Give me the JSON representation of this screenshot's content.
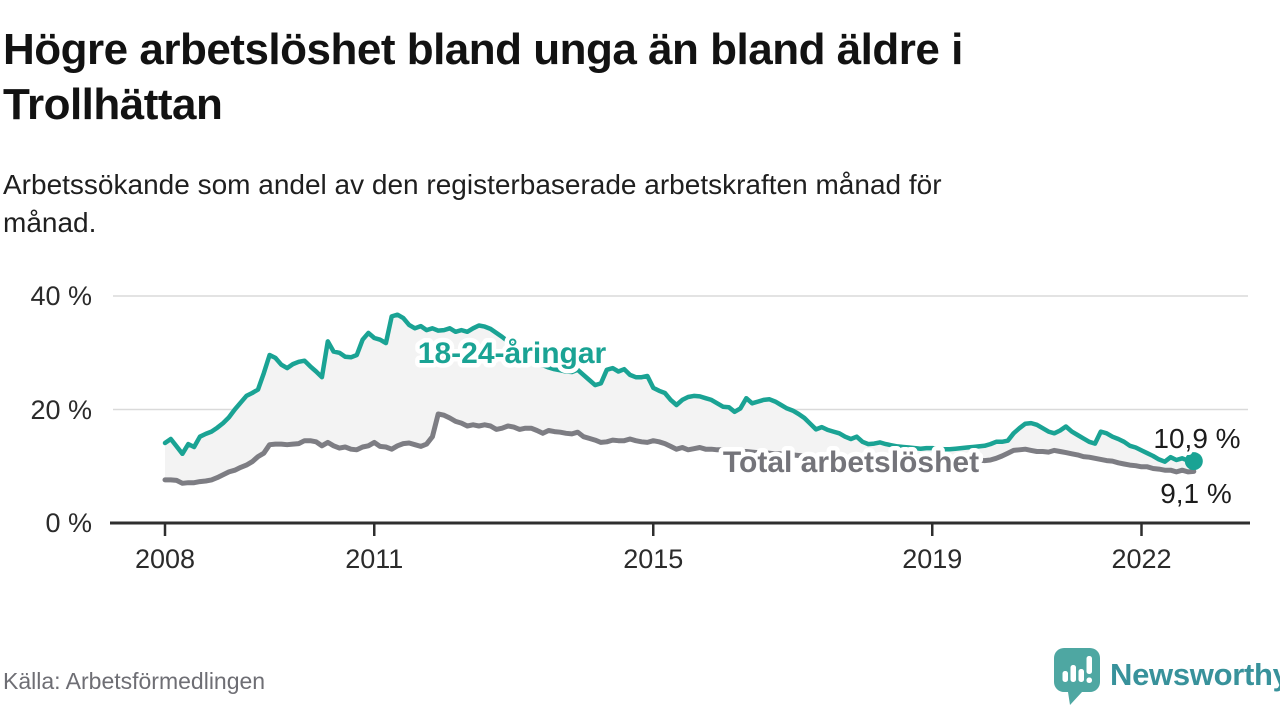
{
  "header": {
    "title_line1": "Högre arbetslöshet bland unga än bland äldre i",
    "title_line2": "Trollhättan",
    "subtitle_line1": "Arbetssökande som andel av den registerbaserade arbetskraften månad för",
    "subtitle_line2": "månad."
  },
  "footer": {
    "source": "Källa: Arbetsförmedlingen",
    "logo_text": "Newsworthy"
  },
  "colors": {
    "young_line": "#1aa394",
    "total_line": "#7d7d83",
    "total_label": "#74747a",
    "area_fill": "#f3f3f3",
    "gridline": "#dadada",
    "axis": "#2e2e2e",
    "logo_bubble": "#4ea7a2",
    "logo_text": "#38929b"
  },
  "chart_data": {
    "type": "line",
    "title": "Högre arbetslöshet bland unga än bland äldre i Trollhättan",
    "unit": "percent",
    "x_start_year": 2008,
    "x_interval": "monthly",
    "x_end": "2022-10",
    "ylim": [
      0,
      40
    ],
    "grid": "horizontal",
    "legend_position": "inline-labels",
    "y_ticks": [
      "0 %",
      "20 %",
      "40 %"
    ],
    "x_ticks": [
      {
        "label": "2008",
        "year_offset": 0
      },
      {
        "label": "2011",
        "year_offset": 3
      },
      {
        "label": "2015",
        "year_offset": 7
      },
      {
        "label": "2019",
        "year_offset": 11
      },
      {
        "label": "2022",
        "year_offset": 14
      }
    ],
    "series": [
      {
        "name": "18-24-åringar",
        "color": "#1aa394",
        "end_label": "10,9 %",
        "values": [
          14.1,
          14.8,
          13.5,
          12.2,
          13.9,
          13.4,
          15.2,
          15.7,
          16.1,
          16.8,
          17.6,
          18.6,
          20.0,
          21.2,
          22.4,
          22.9,
          23.5,
          26.4,
          29.6,
          29.1,
          27.9,
          27.3,
          28.0,
          28.4,
          28.6,
          27.6,
          26.7,
          25.7,
          32.0,
          30.2,
          30.0,
          29.3,
          29.2,
          29.6,
          32.3,
          33.5,
          32.6,
          32.3,
          31.7,
          36.4,
          36.7,
          36.1,
          34.9,
          34.3,
          34.7,
          34.0,
          34.3,
          33.9,
          34.0,
          34.3,
          33.7,
          34.0,
          33.7,
          34.3,
          34.8,
          34.6,
          34.2,
          33.5,
          32.8,
          32.0,
          31.2,
          30.4,
          29.6,
          28.9,
          28.3,
          27.8,
          27.4,
          27.1,
          26.9,
          26.7,
          26.6,
          27.0,
          26.1,
          25.2,
          24.3,
          24.6,
          27.0,
          27.3,
          26.7,
          27.1,
          26.1,
          25.7,
          25.7,
          25.9,
          23.8,
          23.3,
          22.9,
          21.7,
          20.8,
          21.7,
          22.2,
          22.4,
          22.3,
          22.0,
          21.7,
          21.1,
          20.5,
          20.4,
          19.6,
          20.2,
          22.0,
          21.1,
          21.4,
          21.7,
          21.8,
          21.4,
          20.8,
          20.2,
          19.8,
          19.2,
          18.5,
          17.5,
          16.5,
          16.9,
          16.4,
          16.1,
          15.8,
          15.2,
          14.8,
          15.2,
          14.3,
          13.9,
          14.0,
          14.2,
          13.9,
          13.7,
          13.5,
          13.4,
          13.3,
          13.2,
          13.1,
          13.2,
          13.2,
          13.1,
          13.0,
          13.0,
          13.1,
          13.2,
          13.3,
          13.4,
          13.5,
          13.6,
          13.9,
          14.3,
          14.3,
          14.5,
          15.8,
          16.7,
          17.5,
          17.6,
          17.3,
          16.7,
          16.1,
          15.8,
          16.3,
          17.0,
          16.1,
          15.5,
          14.9,
          14.3,
          14.0,
          16.1,
          15.8,
          15.2,
          14.8,
          14.3,
          13.6,
          13.3,
          12.8,
          12.3,
          11.8,
          11.2,
          10.8,
          11.6,
          11.1,
          11.4,
          11.0,
          10.9
        ]
      },
      {
        "name": "Total arbetslöshet",
        "color": "#7d7d83",
        "end_label": "9,1 %",
        "values": [
          7.6,
          7.6,
          7.5,
          7.0,
          7.1,
          7.1,
          7.3,
          7.4,
          7.6,
          8.0,
          8.5,
          9.0,
          9.3,
          9.8,
          10.2,
          10.8,
          11.7,
          12.3,
          13.8,
          13.9,
          13.9,
          13.8,
          13.9,
          14.0,
          14.5,
          14.5,
          14.3,
          13.6,
          14.2,
          13.6,
          13.2,
          13.4,
          13.0,
          12.9,
          13.4,
          13.6,
          14.2,
          13.5,
          13.4,
          13.0,
          13.6,
          14.0,
          14.1,
          13.8,
          13.5,
          13.9,
          15.2,
          19.2,
          19.0,
          18.5,
          17.9,
          17.6,
          17.1,
          17.3,
          17.1,
          17.3,
          17.1,
          16.5,
          16.7,
          17.1,
          16.9,
          16.5,
          16.7,
          16.7,
          16.3,
          15.8,
          16.3,
          16.1,
          16.0,
          15.8,
          15.7,
          16.0,
          15.2,
          14.9,
          14.6,
          14.2,
          14.3,
          14.6,
          14.5,
          14.5,
          14.8,
          14.5,
          14.3,
          14.2,
          14.5,
          14.3,
          14.0,
          13.5,
          13.0,
          13.3,
          12.9,
          13.1,
          13.3,
          13.0,
          13.0,
          12.9,
          12.9,
          12.8,
          12.7,
          12.6,
          12.6,
          12.5,
          12.4,
          12.4,
          12.3,
          12.2,
          12.2,
          12.1,
          12.0,
          11.9,
          11.8,
          11.7,
          11.6,
          11.5,
          11.4,
          11.3,
          11.2,
          11.1,
          11.0,
          11.0,
          10.9,
          10.8,
          10.8,
          10.7,
          10.7,
          10.6,
          10.6,
          10.6,
          10.7,
          10.7,
          10.8,
          10.9,
          10.9,
          11.0,
          11.0,
          11.0,
          11.0,
          11.1,
          11.1,
          11.1,
          11.1,
          11.0,
          11.1,
          11.4,
          11.8,
          12.3,
          12.8,
          12.9,
          13.0,
          12.8,
          12.6,
          12.6,
          12.5,
          12.8,
          12.6,
          12.4,
          12.2,
          12.0,
          11.7,
          11.6,
          11.4,
          11.2,
          11.0,
          10.9,
          10.6,
          10.4,
          10.2,
          10.1,
          9.9,
          9.9,
          9.6,
          9.5,
          9.3,
          9.3,
          9.0,
          9.3,
          9.0,
          9.1
        ]
      }
    ]
  }
}
